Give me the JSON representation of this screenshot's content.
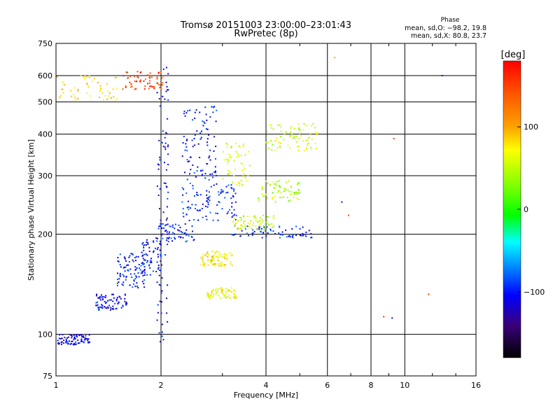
{
  "title_line1": "Tromsø 20151003 23:00:00–23:01:43",
  "title_line2": "RwPretec (8p)",
  "phase_box": {
    "heading": "Phase",
    "line_o": "mean, sd,O: −98.2, 19.8",
    "line_x": "mean, sd,X:  80.8, 23.7"
  },
  "colorbar": {
    "label": "[deg]",
    "ticks": [
      "100",
      "0",
      "−100"
    ],
    "tick_values": [
      100,
      0,
      -100
    ],
    "range": [
      -180,
      180
    ]
  },
  "chart_data": {
    "type": "scatter",
    "xlabel": "Frequency [MHz]",
    "ylabel": "Stationary phase Virtual Height [km]",
    "xscale": "log",
    "yscale": "log",
    "xlim": [
      1,
      16
    ],
    "ylim": [
      75,
      750
    ],
    "xticks": [
      1,
      2,
      4,
      6,
      8,
      10,
      16
    ],
    "xtick_labels": [
      "1",
      "2",
      "4",
      "6",
      "8",
      "10",
      "16"
    ],
    "yticks": [
      75,
      100,
      200,
      300,
      400,
      500,
      600,
      750
    ],
    "ytick_labels": [
      "75",
      "100",
      "200",
      "300",
      "400",
      "500",
      "600",
      "750"
    ],
    "grid": true,
    "point_clusters": [
      {
        "x": [
          1.0,
          1.25
        ],
        "y": [
          93,
          100
        ],
        "phase_deg": -110
      },
      {
        "x": [
          1.3,
          1.6
        ],
        "y": [
          118,
          132
        ],
        "phase_deg": -105
      },
      {
        "x": [
          1.5,
          1.8
        ],
        "y": [
          138,
          175
        ],
        "phase_deg": -100
      },
      {
        "x": [
          1.75,
          2.0
        ],
        "y": [
          150,
          195
        ],
        "phase_deg": -100
      },
      {
        "x": [
          1.95,
          2.1
        ],
        "y": [
          95,
          640
        ],
        "phase_deg": -110
      },
      {
        "x": [
          2.0,
          2.5
        ],
        "y": [
          190,
          215
        ],
        "phase_deg": -95
      },
      {
        "x": [
          2.3,
          2.9
        ],
        "y": [
          290,
          490
        ],
        "phase_deg": -100
      },
      {
        "x": [
          2.3,
          3.3
        ],
        "y": [
          220,
          285
        ],
        "phase_deg": -95
      },
      {
        "x": [
          2.6,
          3.2
        ],
        "y": [
          160,
          178
        ],
        "phase_deg": 75
      },
      {
        "x": [
          2.7,
          3.3
        ],
        "y": [
          128,
          138
        ],
        "phase_deg": 70
      },
      {
        "x": [
          3.0,
          3.6
        ],
        "y": [
          280,
          380
        ],
        "phase_deg": 60
      },
      {
        "x": [
          3.2,
          5.5
        ],
        "y": [
          195,
          212
        ],
        "phase_deg": -95
      },
      {
        "x": [
          3.2,
          4.3
        ],
        "y": [
          205,
          228
        ],
        "phase_deg": 55
      },
      {
        "x": [
          3.8,
          5.0
        ],
        "y": [
          250,
          290
        ],
        "phase_deg": 40
      },
      {
        "x": [
          4.0,
          5.6
        ],
        "y": [
          355,
          430
        ],
        "phase_deg": 55
      },
      {
        "x": [
          1.55,
          2.05
        ],
        "y": [
          545,
          620
        ],
        "phase_deg": 150
      },
      {
        "x": [
          1.0,
          1.5
        ],
        "y": [
          505,
          600
        ],
        "phase_deg": 80
      }
    ],
    "isolated_points": [
      {
        "x": 6.3,
        "y": 680,
        "phase_deg": 100
      },
      {
        "x": 6.6,
        "y": 250,
        "phase_deg": -110
      },
      {
        "x": 9.2,
        "y": 112,
        "phase_deg": -110
      },
      {
        "x": 8.7,
        "y": 113,
        "phase_deg": 160
      },
      {
        "x": 11.7,
        "y": 132,
        "phase_deg": 150
      },
      {
        "x": 12.8,
        "y": 600,
        "phase_deg": -110
      },
      {
        "x": 9.3,
        "y": 388,
        "phase_deg": 150
      },
      {
        "x": 6.9,
        "y": 228,
        "phase_deg": 150
      }
    ],
    "colors": {
      "axis": "#000000",
      "grid": "#000000"
    }
  }
}
